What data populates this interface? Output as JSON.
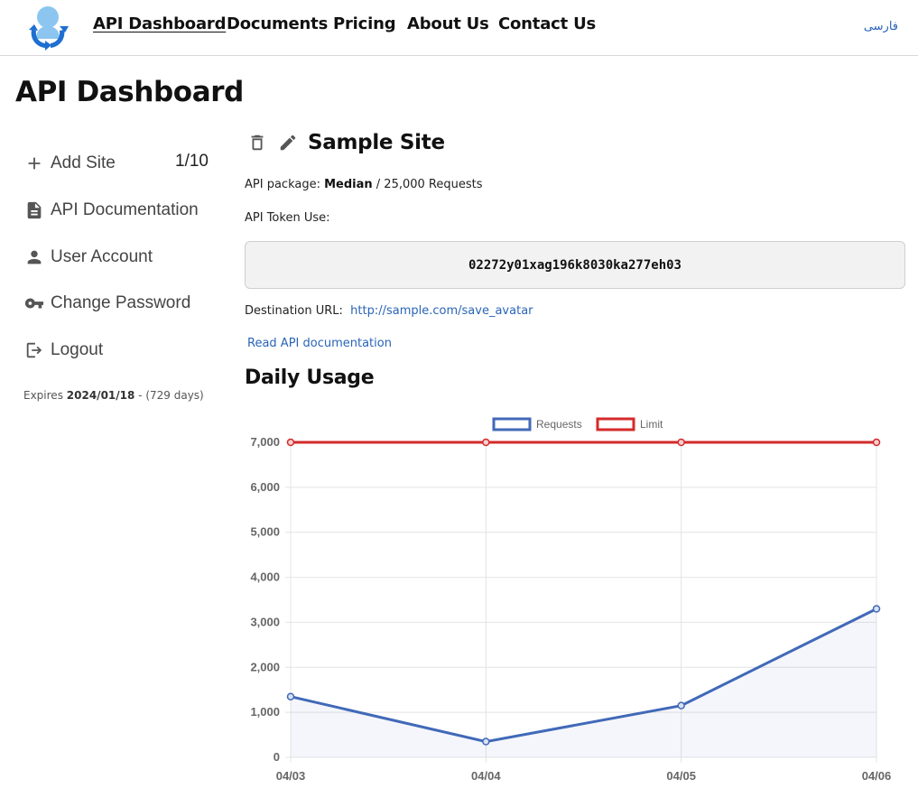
{
  "nav": {
    "items": [
      {
        "label": "API Dashboard",
        "active": true
      },
      {
        "label": "Documents"
      },
      {
        "label": "Pricing"
      },
      {
        "label": "About Us"
      },
      {
        "label": "Contact Us"
      }
    ],
    "language": "فارسی"
  },
  "page": {
    "title": "API Dashboard"
  },
  "sidebar": {
    "items": [
      {
        "label": "Add Site",
        "icon": "plus-icon"
      },
      {
        "label": "API Documentation",
        "icon": "document-icon"
      },
      {
        "label": "User Account",
        "icon": "user-icon"
      },
      {
        "label": "Change Password",
        "icon": "key-icon"
      },
      {
        "label": "Logout",
        "icon": "logout-icon"
      }
    ],
    "site_count": "1/10",
    "expires_label": "Expires",
    "expires_date": "2024/01/18",
    "expires_days": "- (729 days)"
  },
  "site": {
    "name": "Sample Site",
    "package_label": "API package:",
    "package_name": "Median",
    "package_requests": "/ 25,000 Requests",
    "token_label": "API Token Use:",
    "token": "02272y01xag196k8030ka277eh03",
    "destination_label": "Destination URL:",
    "destination_url": "http://sample.com/save_avatar",
    "docs_link": "Read API documentation"
  },
  "usage": {
    "title": "Daily Usage"
  },
  "colors": {
    "requests": "#4169b8",
    "limit": "#d42a2a",
    "link": "#2a64b8"
  },
  "chart_data": {
    "type": "line",
    "categories": [
      "04/03",
      "04/04",
      "04/05",
      "04/06"
    ],
    "series": [
      {
        "name": "Requests",
        "values": [
          1350,
          350,
          1150,
          3300
        ],
        "color": "#4169b8",
        "fill": true
      },
      {
        "name": "Limit",
        "values": [
          7000,
          7000,
          7000,
          7000
        ],
        "color": "#d42a2a",
        "fill": false
      }
    ],
    "ylim": [
      0,
      7000
    ],
    "yticks": [
      0,
      1000,
      2000,
      3000,
      4000,
      5000,
      6000,
      7000
    ],
    "ytick_labels": [
      "0",
      "1,000",
      "2,000",
      "3,000",
      "4,000",
      "5,000",
      "6,000",
      "7,000"
    ],
    "grid": true,
    "legend": "top"
  }
}
